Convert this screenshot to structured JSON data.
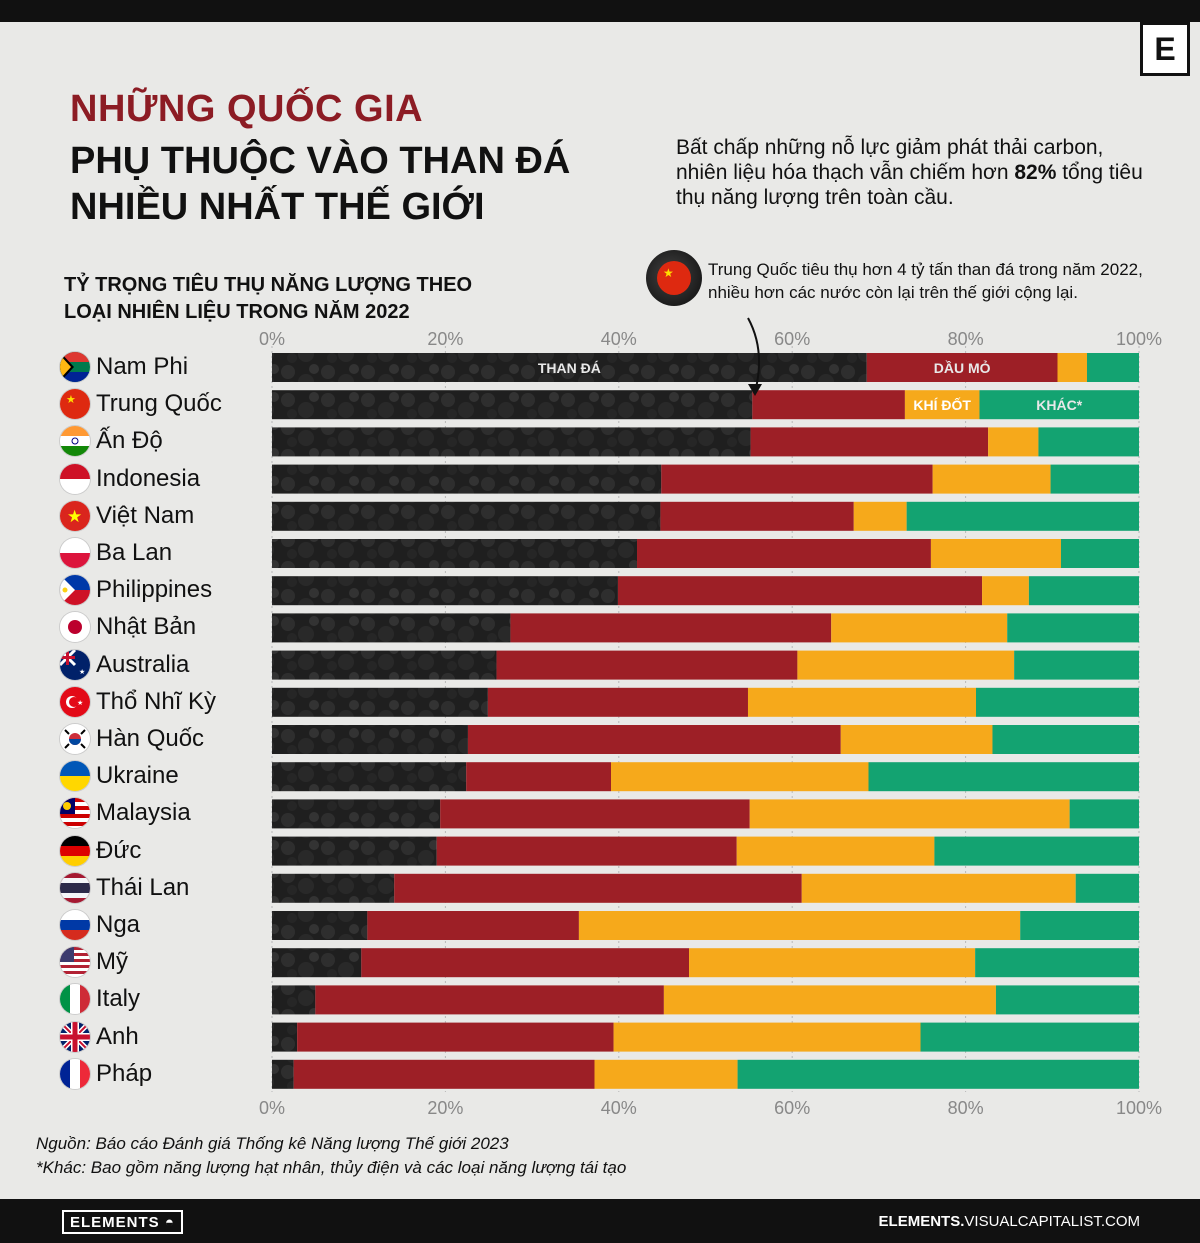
{
  "header": {
    "title_line1": "NHỮNG QUỐC GIA",
    "title_line2": "PHỤ THUỘC VÀO THAN ĐÁ NHIỀU NHẤT THẾ GIỚI",
    "subtitle_before": "Bất chấp những nỗ lực giảm phát thải carbon, nhiên liệu hóa thạch vẫn chiếm hơn",
    "subtitle_bold": "82%",
    "subtitle_after": "tổng tiêu thụ năng lượng  trên toàn cầu.",
    "logo": "E"
  },
  "callout": {
    "text": "Trung Quốc tiêu thụ hơn 4 tỷ tấn than đá trong năm 2022, nhiều hơn các nước còn lại trên thế giới cộng lại.",
    "icon": "china-flag-coal-icon"
  },
  "chart_data": {
    "type": "bar",
    "orientation": "horizontal-stacked-100",
    "title": "TỶ TRỌNG TIÊU THỤ NĂNG LƯỢNG THEO LOẠI NHIÊN LIỆU TRONG NĂM 2022",
    "xlim": [
      0,
      100
    ],
    "x_ticks": [
      "0%",
      "20%",
      "40%",
      "60%",
      "80%",
      "100%"
    ],
    "categories": [
      "Nam Phi",
      "Trung Quốc",
      "Ấn Độ",
      "Indonesia",
      "Việt Nam",
      "Ba Lan",
      "Philippines",
      "Nhật Bản",
      "Australia",
      "Thổ Nhĩ Kỳ",
      "Hàn Quốc",
      "Ukraine",
      "Malaysia",
      "Đức",
      "Thái Lan",
      "Nga",
      "Mỹ",
      "Italy",
      "Anh",
      "Pháp"
    ],
    "series": [
      {
        "name": "THAN ĐÁ",
        "color": "#1c1c1c",
        "values": [
          68.6,
          55.4,
          55.2,
          44.9,
          44.8,
          42.1,
          39.9,
          27.5,
          25.9,
          24.9,
          22.6,
          22.4,
          19.4,
          19.0,
          14.1,
          11.0,
          10.3,
          5.0,
          2.9,
          2.5
        ]
      },
      {
        "name": "DẦU MỎ",
        "color": "#9d1f26",
        "values": [
          22.0,
          17.6,
          27.4,
          31.3,
          22.3,
          33.9,
          42.0,
          37.0,
          34.7,
          30.0,
          43.0,
          16.7,
          35.7,
          34.6,
          47.0,
          24.4,
          37.8,
          40.2,
          36.5,
          34.7
        ]
      },
      {
        "name": "KHÍ ĐỐT",
        "color": "#f6a91b",
        "values": [
          3.4,
          8.6,
          5.8,
          13.6,
          6.1,
          15.0,
          5.4,
          20.3,
          25.0,
          26.3,
          17.5,
          29.7,
          36.9,
          22.8,
          31.6,
          50.9,
          33.0,
          38.3,
          35.4,
          16.5
        ]
      },
      {
        "name": "KHÁC*",
        "color": "#13a371",
        "values": [
          6.0,
          18.4,
          11.6,
          10.2,
          26.8,
          9.0,
          12.7,
          15.2,
          14.4,
          18.8,
          16.9,
          31.2,
          8.0,
          23.6,
          7.3,
          13.7,
          18.9,
          16.5,
          25.2,
          46.3
        ]
      }
    ]
  },
  "flags": [
    "za-flag-icon",
    "cn-flag-icon",
    "in-flag-icon",
    "id-flag-icon",
    "vn-flag-icon",
    "pl-flag-icon",
    "ph-flag-icon",
    "jp-flag-icon",
    "au-flag-icon",
    "tr-flag-icon",
    "kr-flag-icon",
    "ua-flag-icon",
    "my-flag-icon",
    "de-flag-icon",
    "th-flag-icon",
    "ru-flag-icon",
    "us-flag-icon",
    "it-flag-icon",
    "gb-flag-icon",
    "fr-flag-icon"
  ],
  "footer": {
    "source": "Nguồn: Báo cáo Đánh giá Thống kê Năng lượng Thế giới 2023",
    "note": "*Khác: Bao gồm năng lượng hạt nhân, thủy điện và các loại năng lượng tái tạo",
    "brand_left": "ELEMENTS",
    "brand_right_bold": "ELEMENTS.",
    "brand_right_rest": "VISUALCAPITALIST.COM"
  }
}
